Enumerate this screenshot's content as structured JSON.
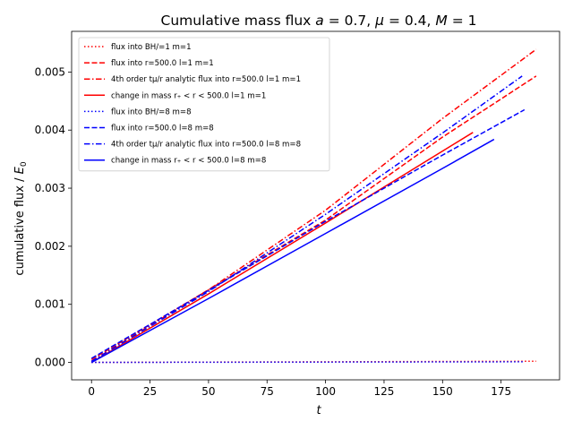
{
  "chart_data": {
    "type": "line",
    "title": "Cumulative mass flux $a=0.7$, $\\mu=0.4$, $M=1$",
    "xlabel": "t",
    "ylabel": "cumulative flux / E₀",
    "xlim": [
      -8.5,
      200
    ],
    "ylim": [
      -0.0003,
      0.0057
    ],
    "xticks": [
      0,
      25,
      50,
      75,
      100,
      125,
      150,
      175
    ],
    "yticks": [
      0.0,
      0.001,
      0.002,
      0.003,
      0.004,
      0.005
    ],
    "ytick_labels": [
      "0.000",
      "0.001",
      "0.002",
      "0.003",
      "0.004",
      "0.005"
    ],
    "xtick_labels": [
      "0",
      "25",
      "50",
      "75",
      "100",
      "125",
      "150",
      "175"
    ],
    "grid": false,
    "legend_position": "upper-left",
    "series": [
      {
        "name": "flux into BH/=1 m=1",
        "color": "#ff0000",
        "dash": "dotted",
        "x": [
          0,
          190
        ],
        "y": [
          0.0,
          2e-05
        ]
      },
      {
        "name": "flux into r=500.0 l=1 m=1",
        "color": "#ff0000",
        "dash": "dashed",
        "x": [
          0,
          50,
          100,
          150,
          190
        ],
        "y": [
          5e-05,
          0.00125,
          0.00245,
          0.00388,
          0.00493
        ]
      },
      {
        "name": "4th order tμ/r analytic flux into r=500.0 l=1 m=1",
        "color": "#ff0000",
        "dash": "dashdot",
        "x": [
          0,
          50,
          100,
          150,
          190
        ],
        "y": [
          2e-05,
          0.00125,
          0.00262,
          0.0042,
          0.00539
        ]
      },
      {
        "name": "change in mass r₊ < r < 500.0 l=1 m=1",
        "color": "#ff0000",
        "dash": "solid",
        "x": [
          0,
          50,
          100,
          163
        ],
        "y": [
          0.0,
          0.00118,
          0.0024,
          0.00396
        ]
      },
      {
        "name": "flux into BH/=8 m=8",
        "color": "#0000ff",
        "dash": "dotted",
        "x": [
          0,
          185
        ],
        "y": [
          0.0,
          1e-05
        ]
      },
      {
        "name": "flux into r=500.0 l=8 m=8",
        "color": "#0000ff",
        "dash": "dashed",
        "x": [
          0,
          50,
          100,
          150,
          185
        ],
        "y": [
          7e-05,
          0.00124,
          0.00243,
          0.00357,
          0.00435
        ]
      },
      {
        "name": "4th order tμ/r analytic flux into r=500.0 l=8 m=8",
        "color": "#0000ff",
        "dash": "dashdot",
        "x": [
          0,
          50,
          100,
          150,
          184
        ],
        "y": [
          2e-05,
          0.00122,
          0.00255,
          0.00395,
          0.00493
        ]
      },
      {
        "name": "change in mass r₊ < r < 500.0 l=8 m=8",
        "color": "#0000ff",
        "dash": "solid",
        "x": [
          0,
          50,
          100,
          150,
          172
        ],
        "y": [
          0.0,
          0.0011,
          0.00222,
          0.00334,
          0.00384
        ]
      }
    ],
    "legend_labels": [
      "flux into BH/=1 m=1",
      "flux into r=500.0 l=1 m=1",
      "4th order tμ/r analytic flux into r=500.0 l=1 m=1",
      "change in mass r₊ < r < 500.0 l=1 m=1",
      "flux into BH/=8 m=8",
      "flux into r=500.0 l=8 m=8",
      "4th order tμ/r analytic flux into r=500.0 l=8 m=8",
      "change in mass r₊ < r < 500.0 l=8 m=8"
    ]
  }
}
